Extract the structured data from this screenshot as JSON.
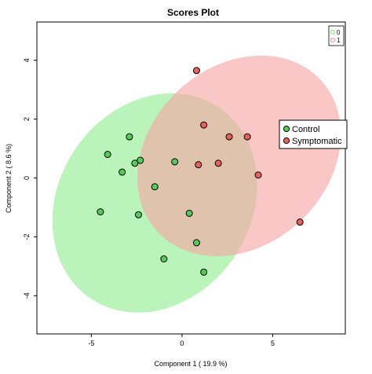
{
  "chart_data": {
    "type": "scatter",
    "title": "Scores Plot",
    "xlabel": "Component 1 ( 19.9 %)",
    "ylabel": "Component 2 ( 8.6 %)",
    "xlim": [
      -8,
      9
    ],
    "ylim": [
      -5.3,
      5.3
    ],
    "x_ticks": [
      "-5",
      "0",
      "5"
    ],
    "x_tick_values": [
      -5,
      0,
      5
    ],
    "y_ticks": [
      "-4",
      "-2",
      "0",
      "2",
      "4"
    ],
    "y_tick_values": [
      -4,
      -2,
      0,
      2,
      4
    ],
    "grid": false,
    "legend": {
      "placement": "top-right",
      "entries": [
        {
          "label": "0",
          "color": "#7fe07f"
        },
        {
          "label": "1",
          "color": "#ee7f7f"
        }
      ]
    },
    "callout": {
      "placement": "right",
      "entries": [
        {
          "label": "Control",
          "color": "#55cc55"
        },
        {
          "label": "Symptomatic",
          "color": "#e8615a"
        }
      ]
    },
    "series": [
      {
        "name": "0",
        "color": "#55cc55",
        "ellipse_color": "#90ee90",
        "points": [
          {
            "x": -4.1,
            "y": 0.8
          },
          {
            "x": -2.9,
            "y": 1.4
          },
          {
            "x": -2.3,
            "y": 0.6
          },
          {
            "x": -2.6,
            "y": 0.5
          },
          {
            "x": -3.3,
            "y": 0.2
          },
          {
            "x": -0.4,
            "y": 0.55
          },
          {
            "x": -1.5,
            "y": -0.3
          },
          {
            "x": -4.5,
            "y": -1.15
          },
          {
            "x": -2.4,
            "y": -1.25
          },
          {
            "x": 0.4,
            "y": -1.2
          },
          {
            "x": 0.8,
            "y": -2.2
          },
          {
            "x": -1.0,
            "y": -2.75
          },
          {
            "x": 1.2,
            "y": -3.2
          }
        ]
      },
      {
        "name": "1",
        "color": "#e8615a",
        "ellipse_color": "#f7a5a5",
        "points": [
          {
            "x": 0.8,
            "y": 3.65
          },
          {
            "x": 1.2,
            "y": 1.8
          },
          {
            "x": 2.6,
            "y": 1.4
          },
          {
            "x": 3.6,
            "y": 1.4
          },
          {
            "x": 0.9,
            "y": 0.45
          },
          {
            "x": 2.0,
            "y": 0.5
          },
          {
            "x": 4.2,
            "y": 0.1
          },
          {
            "x": 6.5,
            "y": -1.5
          }
        ]
      }
    ],
    "ellipses": [
      {
        "series": "0",
        "cx": -1.5,
        "cy": -0.85,
        "rx": 6.34,
        "ry": 3.27,
        "angle_deg": -56
      },
      {
        "series": "1",
        "cx": 3.15,
        "cy": 0.75,
        "rx": 6.14,
        "ry": 3.04,
        "angle_deg": -43
      }
    ]
  }
}
